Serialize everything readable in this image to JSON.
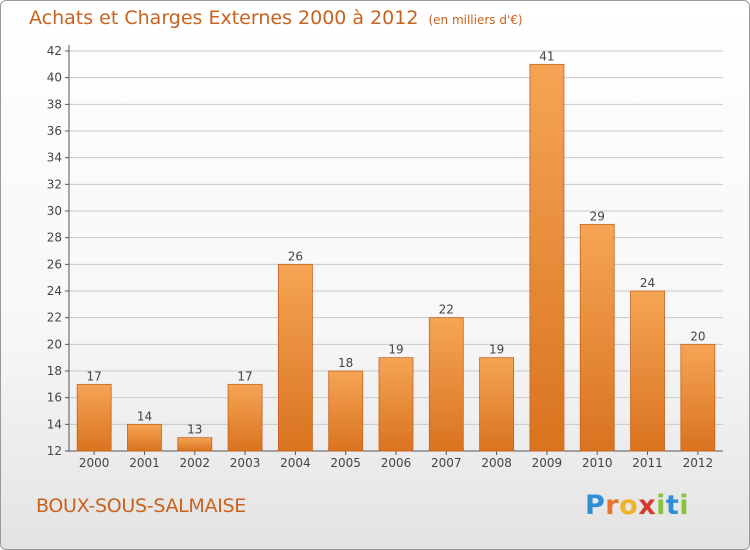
{
  "header": {
    "title": "Achats et Charges Externes 2000 à 2012",
    "unit": "(en milliers d'€)"
  },
  "location": "BOUX-SOUS-SALMAISE",
  "brand": {
    "letters": [
      {
        "ch": "P",
        "color": "#2f8fd6"
      },
      {
        "ch": "r",
        "color": "#e8732b"
      },
      {
        "ch": "o",
        "color": "#f0b326"
      },
      {
        "ch": "x",
        "color": "#d83a2f"
      },
      {
        "ch": "i",
        "color": "#8ac43f"
      },
      {
        "ch": "t",
        "color": "#2f8fd6"
      },
      {
        "ch": "i",
        "color": "#8ac43f"
      }
    ]
  },
  "colors": {
    "bar_top": "#f5a555",
    "bar_bottom": "#d9731f",
    "bar_stroke": "#c8621f",
    "title": "#c8621f",
    "grid": "#c8c8c8"
  },
  "chart_data": {
    "type": "bar",
    "title": "Achats et Charges Externes 2000 à 2012",
    "xlabel": "",
    "ylabel": "",
    "categories": [
      "2000",
      "2001",
      "2002",
      "2003",
      "2004",
      "2005",
      "2006",
      "2007",
      "2008",
      "2009",
      "2010",
      "2011",
      "2012"
    ],
    "values": [
      17,
      14,
      13,
      17,
      26,
      18,
      19,
      22,
      19,
      41,
      29,
      24,
      20
    ],
    "ylim": [
      12,
      42
    ],
    "yticks": [
      12,
      14,
      16,
      18,
      20,
      22,
      24,
      26,
      28,
      30,
      32,
      34,
      36,
      38,
      40,
      42
    ],
    "grid": true
  }
}
